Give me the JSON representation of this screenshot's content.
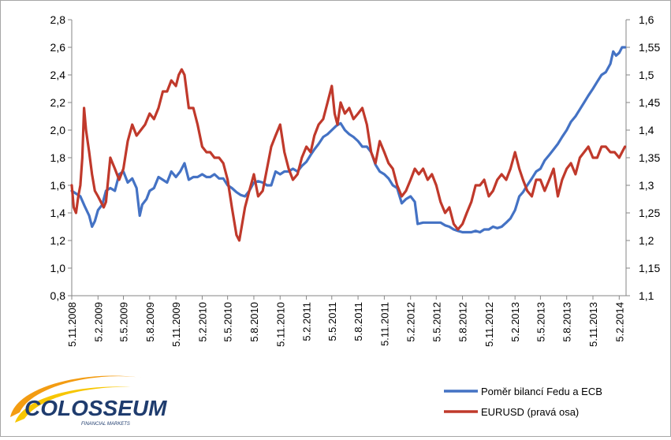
{
  "chart_data": {
    "type": "line",
    "title": "",
    "xlabel": "",
    "ylabel": "",
    "x_ticks": [
      "5.11.2008",
      "5.2.2009",
      "5.5.2009",
      "5.8.2009",
      "5.11.2009",
      "5.2.2010",
      "5.5.2010",
      "5.8.2010",
      "5.11.2010",
      "5.2.2011",
      "5.5.2011",
      "5.8.2011",
      "5.11.2011",
      "5.2.2012",
      "5.5.2012",
      "5.8.2012",
      "5.11.2012",
      "5.2.2013",
      "5.5.2013",
      "5.8.2013",
      "5.11.2013",
      "5.2.2014"
    ],
    "x_range": [
      "2008-11-05",
      "2014-03-01"
    ],
    "y_left": {
      "min": 0.8,
      "max": 2.8,
      "step": 0.2,
      "tick_labels": [
        "0,8",
        "1,0",
        "1,2",
        "1,4",
        "1,6",
        "1,8",
        "2,0",
        "2,2",
        "2,4",
        "2,6",
        "2,8"
      ]
    },
    "y_right": {
      "min": 1.1,
      "max": 1.6,
      "step": 0.05,
      "tick_labels": [
        "1,1",
        "1,15",
        "1,2",
        "1,25",
        "1,3",
        "1,35",
        "1,4",
        "1,45",
        "1,5",
        "1,55",
        "1,6"
      ]
    },
    "legend_position": "bottom-right",
    "grid": false,
    "series": [
      {
        "name": "Poměr bilancí Fedu a ECB",
        "axis": "left",
        "color": "#4472c4",
        "points": [
          [
            "2008-11-05",
            1.56
          ],
          [
            "2008-11-20",
            1.54
          ],
          [
            "2008-12-05",
            1.52
          ],
          [
            "2008-12-20",
            1.45
          ],
          [
            "2009-01-05",
            1.38
          ],
          [
            "2009-01-15",
            1.3
          ],
          [
            "2009-01-25",
            1.34
          ],
          [
            "2009-02-05",
            1.42
          ],
          [
            "2009-02-20",
            1.46
          ],
          [
            "2009-03-05",
            1.56
          ],
          [
            "2009-03-20",
            1.58
          ],
          [
            "2009-04-05",
            1.56
          ],
          [
            "2009-04-20",
            1.68
          ],
          [
            "2009-05-05",
            1.7
          ],
          [
            "2009-05-20",
            1.62
          ],
          [
            "2009-06-05",
            1.65
          ],
          [
            "2009-06-20",
            1.58
          ],
          [
            "2009-07-01",
            1.38
          ],
          [
            "2009-07-10",
            1.46
          ],
          [
            "2009-07-25",
            1.5
          ],
          [
            "2009-08-05",
            1.56
          ],
          [
            "2009-08-20",
            1.58
          ],
          [
            "2009-09-05",
            1.66
          ],
          [
            "2009-09-20",
            1.64
          ],
          [
            "2009-10-05",
            1.62
          ],
          [
            "2009-10-20",
            1.7
          ],
          [
            "2009-11-05",
            1.66
          ],
          [
            "2009-11-20",
            1.7
          ],
          [
            "2009-12-05",
            1.76
          ],
          [
            "2009-12-20",
            1.64
          ],
          [
            "2010-01-05",
            1.66
          ],
          [
            "2010-01-20",
            1.66
          ],
          [
            "2010-02-05",
            1.68
          ],
          [
            "2010-02-20",
            1.66
          ],
          [
            "2010-03-05",
            1.66
          ],
          [
            "2010-03-20",
            1.68
          ],
          [
            "2010-04-05",
            1.65
          ],
          [
            "2010-04-20",
            1.65
          ],
          [
            "2010-05-05",
            1.6
          ],
          [
            "2010-05-20",
            1.58
          ],
          [
            "2010-06-05",
            1.55
          ],
          [
            "2010-06-20",
            1.53
          ],
          [
            "2010-07-05",
            1.52
          ],
          [
            "2010-07-20",
            1.56
          ],
          [
            "2010-08-05",
            1.62
          ],
          [
            "2010-08-20",
            1.63
          ],
          [
            "2010-09-05",
            1.62
          ],
          [
            "2010-09-20",
            1.6
          ],
          [
            "2010-10-05",
            1.6
          ],
          [
            "2010-10-20",
            1.7
          ],
          [
            "2010-11-05",
            1.68
          ],
          [
            "2010-11-20",
            1.7
          ],
          [
            "2010-12-05",
            1.7
          ],
          [
            "2010-12-20",
            1.72
          ],
          [
            "2011-01-05",
            1.7
          ],
          [
            "2011-01-20",
            1.74
          ],
          [
            "2011-02-05",
            1.77
          ],
          [
            "2011-02-20",
            1.82
          ],
          [
            "2011-03-05",
            1.86
          ],
          [
            "2011-03-20",
            1.9
          ],
          [
            "2011-04-05",
            1.95
          ],
          [
            "2011-04-20",
            1.97
          ],
          [
            "2011-05-05",
            2.0
          ],
          [
            "2011-05-20",
            2.03
          ],
          [
            "2011-06-05",
            2.05
          ],
          [
            "2011-06-20",
            2.0
          ],
          [
            "2011-07-05",
            1.97
          ],
          [
            "2011-07-20",
            1.95
          ],
          [
            "2011-08-05",
            1.92
          ],
          [
            "2011-08-20",
            1.88
          ],
          [
            "2011-09-05",
            1.88
          ],
          [
            "2011-09-20",
            1.84
          ],
          [
            "2011-10-05",
            1.75
          ],
          [
            "2011-10-20",
            1.7
          ],
          [
            "2011-11-05",
            1.68
          ],
          [
            "2011-11-20",
            1.65
          ],
          [
            "2011-12-05",
            1.6
          ],
          [
            "2011-12-20",
            1.58
          ],
          [
            "2012-01-05",
            1.47
          ],
          [
            "2012-01-20",
            1.5
          ],
          [
            "2012-02-05",
            1.52
          ],
          [
            "2012-02-20",
            1.48
          ],
          [
            "2012-03-01",
            1.32
          ],
          [
            "2012-03-20",
            1.33
          ],
          [
            "2012-04-05",
            1.33
          ],
          [
            "2012-04-20",
            1.33
          ],
          [
            "2012-05-05",
            1.33
          ],
          [
            "2012-05-20",
            1.33
          ],
          [
            "2012-06-05",
            1.31
          ],
          [
            "2012-06-20",
            1.3
          ],
          [
            "2012-07-05",
            1.28
          ],
          [
            "2012-07-20",
            1.27
          ],
          [
            "2012-08-05",
            1.26
          ],
          [
            "2012-08-20",
            1.26
          ],
          [
            "2012-09-05",
            1.26
          ],
          [
            "2012-09-20",
            1.27
          ],
          [
            "2012-10-05",
            1.26
          ],
          [
            "2012-10-20",
            1.28
          ],
          [
            "2012-11-05",
            1.28
          ],
          [
            "2012-11-20",
            1.3
          ],
          [
            "2012-12-05",
            1.29
          ],
          [
            "2012-12-20",
            1.3
          ],
          [
            "2013-01-05",
            1.33
          ],
          [
            "2013-01-20",
            1.36
          ],
          [
            "2013-02-05",
            1.42
          ],
          [
            "2013-02-20",
            1.52
          ],
          [
            "2013-03-05",
            1.55
          ],
          [
            "2013-03-20",
            1.6
          ],
          [
            "2013-04-05",
            1.65
          ],
          [
            "2013-04-20",
            1.7
          ],
          [
            "2013-05-05",
            1.72
          ],
          [
            "2013-05-20",
            1.78
          ],
          [
            "2013-06-05",
            1.82
          ],
          [
            "2013-06-20",
            1.86
          ],
          [
            "2013-07-05",
            1.9
          ],
          [
            "2013-07-20",
            1.95
          ],
          [
            "2013-08-05",
            2.0
          ],
          [
            "2013-08-20",
            2.06
          ],
          [
            "2013-09-05",
            2.1
          ],
          [
            "2013-09-20",
            2.15
          ],
          [
            "2013-10-05",
            2.2
          ],
          [
            "2013-10-20",
            2.25
          ],
          [
            "2013-11-05",
            2.3
          ],
          [
            "2013-11-20",
            2.35
          ],
          [
            "2013-12-05",
            2.4
          ],
          [
            "2013-12-20",
            2.42
          ],
          [
            "2014-01-05",
            2.48
          ],
          [
            "2014-01-15",
            2.57
          ],
          [
            "2014-01-25",
            2.54
          ],
          [
            "2014-02-05",
            2.56
          ],
          [
            "2014-02-15",
            2.6
          ],
          [
            "2014-02-25",
            2.6
          ]
        ]
      },
      {
        "name": "EURUSD (pravá osa)",
        "axis": "right",
        "color": "#c0392b",
        "points": [
          [
            "2008-11-05",
            1.3
          ],
          [
            "2008-11-12",
            1.26
          ],
          [
            "2008-11-20",
            1.25
          ],
          [
            "2008-11-28",
            1.28
          ],
          [
            "2008-12-05",
            1.3
          ],
          [
            "2008-12-12",
            1.35
          ],
          [
            "2008-12-18",
            1.44
          ],
          [
            "2008-12-25",
            1.4
          ],
          [
            "2009-01-05",
            1.36
          ],
          [
            "2009-01-15",
            1.32
          ],
          [
            "2009-01-25",
            1.29
          ],
          [
            "2009-02-05",
            1.28
          ],
          [
            "2009-02-15",
            1.27
          ],
          [
            "2009-02-25",
            1.26
          ],
          [
            "2009-03-05",
            1.27
          ],
          [
            "2009-03-20",
            1.35
          ],
          [
            "2009-04-05",
            1.33
          ],
          [
            "2009-04-20",
            1.31
          ],
          [
            "2009-05-05",
            1.33
          ],
          [
            "2009-05-20",
            1.38
          ],
          [
            "2009-06-05",
            1.41
          ],
          [
            "2009-06-20",
            1.39
          ],
          [
            "2009-07-05",
            1.4
          ],
          [
            "2009-07-20",
            1.41
          ],
          [
            "2009-08-05",
            1.43
          ],
          [
            "2009-08-20",
            1.42
          ],
          [
            "2009-09-05",
            1.44
          ],
          [
            "2009-09-20",
            1.47
          ],
          [
            "2009-10-05",
            1.47
          ],
          [
            "2009-10-20",
            1.49
          ],
          [
            "2009-11-05",
            1.48
          ],
          [
            "2009-11-15",
            1.5
          ],
          [
            "2009-11-25",
            1.51
          ],
          [
            "2009-12-05",
            1.5
          ],
          [
            "2009-12-20",
            1.44
          ],
          [
            "2010-01-05",
            1.44
          ],
          [
            "2010-01-20",
            1.41
          ],
          [
            "2010-02-05",
            1.37
          ],
          [
            "2010-02-20",
            1.36
          ],
          [
            "2010-03-05",
            1.36
          ],
          [
            "2010-03-20",
            1.35
          ],
          [
            "2010-04-05",
            1.35
          ],
          [
            "2010-04-20",
            1.34
          ],
          [
            "2010-05-05",
            1.31
          ],
          [
            "2010-05-20",
            1.26
          ],
          [
            "2010-06-05",
            1.21
          ],
          [
            "2010-06-15",
            1.2
          ],
          [
            "2010-06-25",
            1.23
          ],
          [
            "2010-07-05",
            1.26
          ],
          [
            "2010-07-20",
            1.29
          ],
          [
            "2010-08-05",
            1.32
          ],
          [
            "2010-08-20",
            1.28
          ],
          [
            "2010-09-05",
            1.29
          ],
          [
            "2010-09-20",
            1.33
          ],
          [
            "2010-10-05",
            1.37
          ],
          [
            "2010-10-20",
            1.39
          ],
          [
            "2010-11-05",
            1.41
          ],
          [
            "2010-11-20",
            1.36
          ],
          [
            "2010-12-05",
            1.33
          ],
          [
            "2010-12-20",
            1.31
          ],
          [
            "2011-01-05",
            1.32
          ],
          [
            "2011-01-20",
            1.35
          ],
          [
            "2011-02-05",
            1.37
          ],
          [
            "2011-02-20",
            1.36
          ],
          [
            "2011-03-05",
            1.39
          ],
          [
            "2011-03-20",
            1.41
          ],
          [
            "2011-04-05",
            1.42
          ],
          [
            "2011-04-20",
            1.45
          ],
          [
            "2011-05-05",
            1.48
          ],
          [
            "2011-05-15",
            1.43
          ],
          [
            "2011-05-25",
            1.41
          ],
          [
            "2011-06-05",
            1.45
          ],
          [
            "2011-06-20",
            1.43
          ],
          [
            "2011-07-05",
            1.44
          ],
          [
            "2011-07-20",
            1.42
          ],
          [
            "2011-08-05",
            1.43
          ],
          [
            "2011-08-20",
            1.44
          ],
          [
            "2011-09-05",
            1.41
          ],
          [
            "2011-09-20",
            1.36
          ],
          [
            "2011-10-05",
            1.34
          ],
          [
            "2011-10-20",
            1.38
          ],
          [
            "2011-11-05",
            1.36
          ],
          [
            "2011-11-20",
            1.34
          ],
          [
            "2011-12-05",
            1.33
          ],
          [
            "2011-12-20",
            1.3
          ],
          [
            "2012-01-05",
            1.28
          ],
          [
            "2012-01-20",
            1.29
          ],
          [
            "2012-02-05",
            1.31
          ],
          [
            "2012-02-20",
            1.33
          ],
          [
            "2012-03-05",
            1.32
          ],
          [
            "2012-03-20",
            1.33
          ],
          [
            "2012-04-05",
            1.31
          ],
          [
            "2012-04-20",
            1.32
          ],
          [
            "2012-05-05",
            1.3
          ],
          [
            "2012-05-20",
            1.27
          ],
          [
            "2012-06-05",
            1.25
          ],
          [
            "2012-06-20",
            1.26
          ],
          [
            "2012-07-05",
            1.23
          ],
          [
            "2012-07-20",
            1.22
          ],
          [
            "2012-08-05",
            1.23
          ],
          [
            "2012-08-20",
            1.25
          ],
          [
            "2012-09-05",
            1.27
          ],
          [
            "2012-09-20",
            1.3
          ],
          [
            "2012-10-05",
            1.3
          ],
          [
            "2012-10-20",
            1.31
          ],
          [
            "2012-11-05",
            1.28
          ],
          [
            "2012-11-20",
            1.29
          ],
          [
            "2012-12-05",
            1.31
          ],
          [
            "2012-12-20",
            1.32
          ],
          [
            "2013-01-05",
            1.31
          ],
          [
            "2013-01-20",
            1.33
          ],
          [
            "2013-02-05",
            1.36
          ],
          [
            "2013-02-20",
            1.33
          ],
          [
            "2013-03-05",
            1.31
          ],
          [
            "2013-03-20",
            1.29
          ],
          [
            "2013-04-05",
            1.28
          ],
          [
            "2013-04-20",
            1.31
          ],
          [
            "2013-05-05",
            1.31
          ],
          [
            "2013-05-20",
            1.29
          ],
          [
            "2013-06-05",
            1.31
          ],
          [
            "2013-06-20",
            1.33
          ],
          [
            "2013-07-05",
            1.28
          ],
          [
            "2013-07-20",
            1.31
          ],
          [
            "2013-08-05",
            1.33
          ],
          [
            "2013-08-20",
            1.34
          ],
          [
            "2013-09-05",
            1.32
          ],
          [
            "2013-09-20",
            1.35
          ],
          [
            "2013-10-05",
            1.36
          ],
          [
            "2013-10-20",
            1.37
          ],
          [
            "2013-11-05",
            1.35
          ],
          [
            "2013-11-20",
            1.35
          ],
          [
            "2013-12-05",
            1.37
          ],
          [
            "2013-12-20",
            1.37
          ],
          [
            "2014-01-05",
            1.36
          ],
          [
            "2014-01-20",
            1.36
          ],
          [
            "2014-02-05",
            1.35
          ],
          [
            "2014-02-15",
            1.36
          ],
          [
            "2014-02-25",
            1.37
          ]
        ]
      }
    ]
  },
  "logo": {
    "name": "COLOSSEUM",
    "tagline": "FINANCIAL MARKETS"
  }
}
